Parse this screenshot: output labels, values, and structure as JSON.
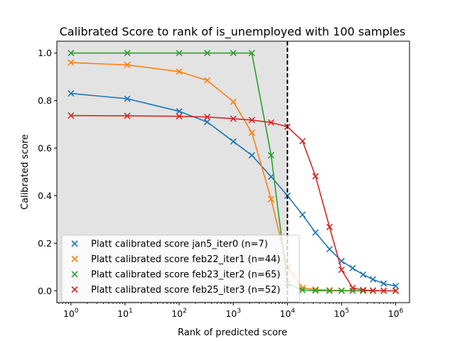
{
  "chart_data": {
    "type": "line",
    "title": "Calibrated Score to rank of is_unemployed with 100 samples",
    "xlabel": "Rank of predicted score",
    "ylabel": "Calibrated score",
    "xscale": "log",
    "xlim": [
      0.55,
      1800000
    ],
    "ylim": [
      -0.05,
      1.05
    ],
    "xticks": [
      1,
      10,
      100,
      1000,
      10000,
      100000,
      1000000
    ],
    "xtick_labels": [
      {
        "base": "10",
        "exp": "0"
      },
      {
        "base": "10",
        "exp": "1"
      },
      {
        "base": "10",
        "exp": "2"
      },
      {
        "base": "10",
        "exp": "3"
      },
      {
        "base": "10",
        "exp": "4"
      },
      {
        "base": "10",
        "exp": "5"
      },
      {
        "base": "10",
        "exp": "6"
      }
    ],
    "yticks": [
      0.0,
      0.2,
      0.4,
      0.6,
      0.8,
      1.0
    ],
    "ytick_labels": [
      "0.0",
      "0.2",
      "0.4",
      "0.6",
      "0.8",
      "1.0"
    ],
    "shaded_region": {
      "x_from": 0.55,
      "x_to": 10000,
      "color": "#e3e3e3"
    },
    "vline": {
      "x": 10000,
      "style": "dashed",
      "color": "#000000"
    },
    "legend_position": "lower-left",
    "series": [
      {
        "name": "Platt calibrated score jan5_iter0 (n=7)",
        "color": "#1f77b4",
        "x": [
          1,
          11,
          100,
          330,
          1000,
          2200,
          5000,
          10000,
          19000,
          33000,
          60000,
          100000,
          160000,
          250000,
          380000,
          600000,
          1000000
        ],
        "y": [
          0.83,
          0.808,
          0.755,
          0.71,
          0.628,
          0.57,
          0.48,
          0.4,
          0.32,
          0.245,
          0.175,
          0.125,
          0.095,
          0.068,
          0.048,
          0.03,
          0.02
        ]
      },
      {
        "name": "Platt calibrated score feb22_iter1 (n=44)",
        "color": "#ff7f0e",
        "x": [
          1,
          11,
          100,
          330,
          1000,
          2200,
          5000,
          10000,
          19000,
          33000,
          60000,
          100000,
          160000,
          250000,
          380000,
          600000,
          1000000
        ],
        "y": [
          0.96,
          0.95,
          0.922,
          0.885,
          0.795,
          0.665,
          0.385,
          0.1,
          0.012,
          0.005,
          0.002,
          0.001,
          0.0,
          0.0,
          0.0,
          0.0,
          0.0
        ]
      },
      {
        "name": "Platt calibrated score feb23_iter2 (n=65)",
        "color": "#2ca02c",
        "x": [
          1,
          11,
          100,
          330,
          1000,
          2200,
          5000,
          10000,
          19000,
          33000,
          60000,
          100000,
          160000,
          250000,
          380000,
          600000,
          1000000
        ],
        "y": [
          1.0,
          1.0,
          1.0,
          1.0,
          1.0,
          1.0,
          0.57,
          0.03,
          0.003,
          0.001,
          0.0,
          0.0,
          0.0,
          0.0,
          0.0,
          0.0,
          0.0
        ]
      },
      {
        "name": "Platt calibrated score feb25_iter3 (n=52)",
        "color": "#d62728",
        "x": [
          1,
          11,
          100,
          330,
          1000,
          2200,
          5000,
          10000,
          19000,
          33000,
          60000,
          100000,
          160000,
          250000,
          380000,
          600000,
          1000000
        ],
        "y": [
          0.737,
          0.736,
          0.734,
          0.731,
          0.724,
          0.718,
          0.708,
          0.69,
          0.63,
          0.482,
          0.268,
          0.088,
          0.012,
          0.003,
          0.001,
          0.0,
          0.0
        ]
      }
    ]
  }
}
